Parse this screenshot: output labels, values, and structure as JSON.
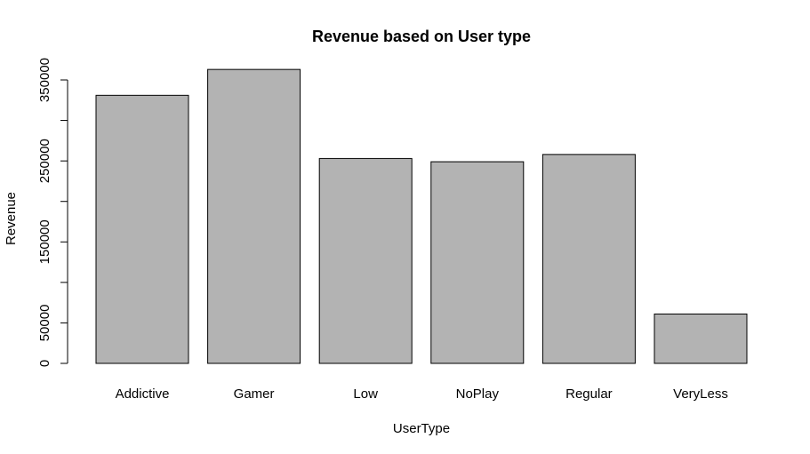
{
  "chart_data": {
    "type": "bar",
    "title": "Revenue based on User type",
    "xlabel": "UserType",
    "ylabel": "Revenue",
    "categories": [
      "Addictive",
      "Gamer",
      "Low",
      "NoPlay",
      "Regular",
      "VeryLess"
    ],
    "values": [
      331000,
      363000,
      253000,
      249000,
      258000,
      61000
    ],
    "ylim": [
      0,
      350000
    ],
    "yticks": [
      0,
      50000,
      100000,
      150000,
      200000,
      250000,
      300000,
      350000
    ],
    "ytick_labels": [
      "0",
      "50000",
      "",
      "150000",
      "",
      "250000",
      "",
      "350000"
    ],
    "bar_color": "#b3b3b3",
    "bar_edge_color": "#000000",
    "grid": false,
    "legend": "none"
  }
}
